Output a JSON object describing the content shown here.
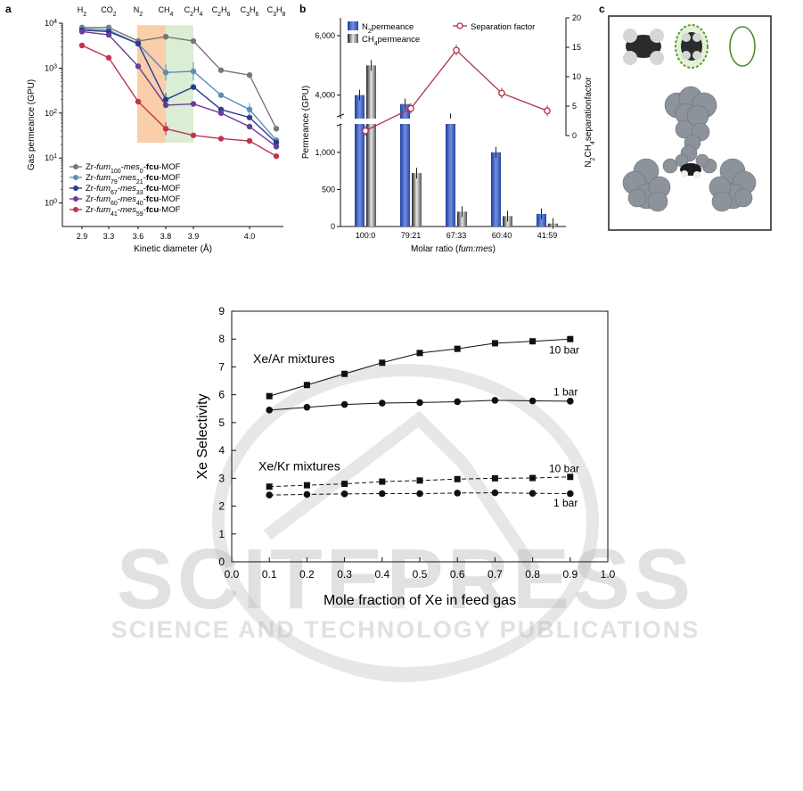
{
  "watermark": {
    "main": "SCITEPRESS",
    "sub": "SCIENCE AND TECHNOLOGY PUBLICATIONS"
  },
  "chart_data": [
    {
      "panel": "a",
      "type": "line",
      "xlabel": "Kinetic diameter (Å)",
      "ylabel": "Gas permeance (GPU)",
      "y_scale": "log",
      "ylim": [
        0.3,
        10000
      ],
      "y_ticks": [
        "10^0",
        "10^1",
        "10^2",
        "10^3",
        "10^4"
      ],
      "x_tick_labels": [
        "2.9",
        "3.3",
        "3.6",
        "3.8",
        "3.9",
        "4.0"
      ],
      "top_labels": [
        "H2",
        "CO2",
        "N2",
        "CH4",
        "C2H4",
        "C2H6",
        "C3H6",
        "C3H8"
      ],
      "highlight_bands": [
        {
          "from_gas": "N2",
          "to_gas": "CH4",
          "color": "#f8c9a0"
        },
        {
          "from_gas": "CH4",
          "to_gas": "C2H4",
          "color": "#d7ebcf"
        }
      ],
      "categories": [
        "H2",
        "CO2",
        "N2",
        "CH4",
        "C2H4",
        "C2H6",
        "C3H6",
        "C3H8"
      ],
      "series": [
        {
          "name": "Zr-fum100-mes0-fcu-MOF",
          "legend_parts": [
            "Zr-",
            "fum",
            "100",
            "-",
            "mes",
            "0",
            "-",
            "fcu",
            "-MOF"
          ],
          "color": "#777777",
          "values": [
            8000,
            8000,
            4000,
            5000,
            4000,
            900,
            700,
            45
          ]
        },
        {
          "name": "Zr-fum79-mes21-fcu-MOF",
          "legend_parts": [
            "Zr-",
            "fum",
            "79",
            "-",
            "mes",
            "21",
            "-",
            "fcu",
            "-MOF"
          ],
          "color": "#5b8db8",
          "values": [
            7500,
            7000,
            3500,
            800,
            850,
            250,
            120,
            25
          ]
        },
        {
          "name": "Zr-fum67-mes33-fcu-MOF",
          "legend_parts": [
            "Zr-",
            "fum",
            "67",
            "-",
            "mes",
            "33",
            "-",
            "fcu",
            "-MOF"
          ],
          "color": "#2a3d8c",
          "values": [
            7000,
            6500,
            3500,
            200,
            380,
            120,
            80,
            22
          ]
        },
        {
          "name": "Zr-fum60-mes40-fcu-MOF",
          "legend_parts": [
            "Zr-",
            "fum",
            "60",
            "-",
            "mes",
            "40",
            "-",
            "fcu",
            "-MOF"
          ],
          "color": "#6a3d9a",
          "values": [
            6500,
            5500,
            1100,
            150,
            160,
            100,
            50,
            18
          ]
        },
        {
          "name": "Zr-fum41-mes59-fcu-MOF",
          "legend_parts": [
            "Zr-",
            "fum",
            "41",
            "-",
            "mes",
            "59",
            "-",
            "fcu",
            "-MOF"
          ],
          "color": "#c0344d",
          "values": [
            3200,
            1700,
            180,
            45,
            32,
            27,
            24,
            11
          ]
        }
      ]
    },
    {
      "panel": "b",
      "type": "bar",
      "xlabel": "Molar ratio (fum:mes)",
      "ylabel": "Permeance (GPU)",
      "y2label": "N2/CH4 separation factor",
      "categories": [
        "100:0",
        "79:21",
        "67:33",
        "60:40",
        "41:59"
      ],
      "y_ticks_lower": [
        "0",
        "500",
        "1,000"
      ],
      "y_ticks_upper": [
        "4,000",
        "6,000"
      ],
      "y2_ticks": [
        "0",
        "5",
        "10",
        "15",
        "20"
      ],
      "y2lim": [
        0,
        20
      ],
      "series": [
        {
          "name": "N2 permeance",
          "color": "#3a57b5",
          "values": [
            4000,
            3700,
            3200,
            1000,
            170
          ]
        },
        {
          "name": "CH4 permeance",
          "color": "#555555",
          "values": [
            5000,
            720,
            200,
            140,
            40
          ]
        },
        {
          "name": "Separation factor",
          "color": "#b03045",
          "type": "line",
          "values": [
            0.8,
            4.6,
            14.5,
            7.2,
            4.2
          ]
        }
      ]
    },
    {
      "panel": "c",
      "type": "other",
      "description_visible": "molecular models"
    },
    {
      "type": "line",
      "xlabel": "Mole fraction of Xe in feed gas",
      "ylabel": "Xe Selectivity",
      "xlim": [
        0.0,
        1.0
      ],
      "ylim": [
        0,
        9
      ],
      "x_ticks": [
        "0.0",
        "0.1",
        "0.2",
        "0.3",
        "0.4",
        "0.5",
        "0.6",
        "0.7",
        "0.8",
        "0.9",
        "1.0"
      ],
      "y_ticks": [
        "0",
        "1",
        "2",
        "3",
        "4",
        "5",
        "6",
        "7",
        "8",
        "9"
      ],
      "x": [
        0.1,
        0.2,
        0.3,
        0.4,
        0.5,
        0.6,
        0.7,
        0.8,
        0.9
      ],
      "group_labels": [
        "Xe/Ar mixtures",
        "Xe/Kr mixtures"
      ],
      "series": [
        {
          "group": "Xe/Ar mixtures",
          "pressure": "10 bar",
          "marker": "square",
          "line": "solid",
          "values": [
            5.95,
            6.35,
            6.75,
            7.15,
            7.5,
            7.65,
            7.85,
            7.92,
            8.0
          ]
        },
        {
          "group": "Xe/Ar mixtures",
          "pressure": "1 bar",
          "marker": "circle",
          "line": "solid",
          "values": [
            5.45,
            5.55,
            5.65,
            5.7,
            5.72,
            5.75,
            5.8,
            5.78,
            5.77
          ]
        },
        {
          "group": "Xe/Kr mixtures",
          "pressure": "10 bar",
          "marker": "square",
          "line": "dashed",
          "values": [
            2.7,
            2.75,
            2.8,
            2.88,
            2.92,
            2.97,
            3.0,
            3.01,
            3.05
          ]
        },
        {
          "group": "Xe/Kr mixtures",
          "pressure": "1 bar",
          "marker": "circle",
          "line": "dashed",
          "values": [
            2.4,
            2.42,
            2.44,
            2.45,
            2.45,
            2.47,
            2.48,
            2.46,
            2.45
          ]
        }
      ]
    }
  ]
}
